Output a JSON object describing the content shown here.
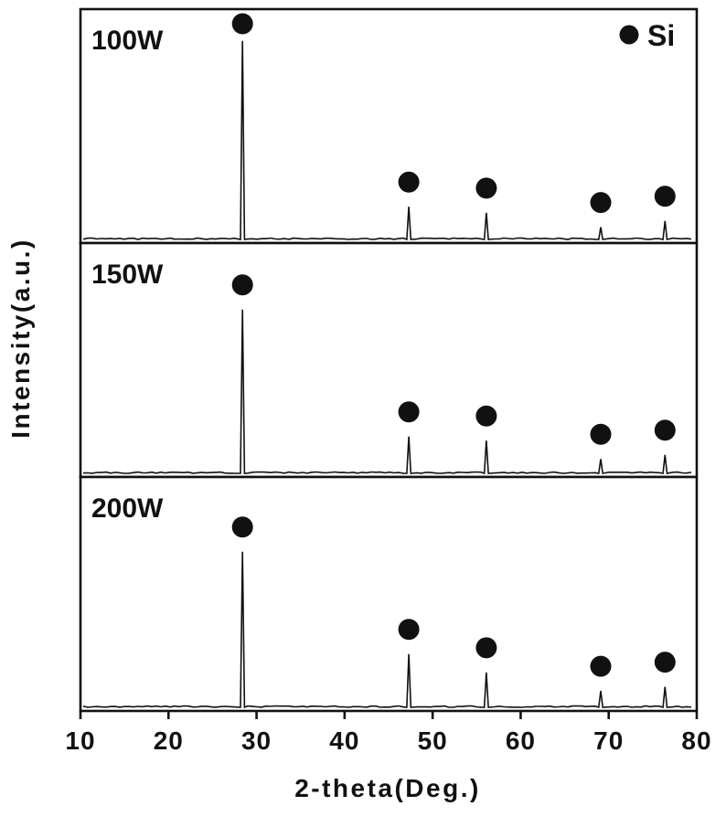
{
  "chart_data": {
    "type": "line",
    "title": "",
    "xlabel": "2-theta(Deg.)",
    "ylabel": "Intensity(a.u.)",
    "xlim": [
      10,
      80
    ],
    "xticks": [
      10,
      20,
      30,
      40,
      50,
      60,
      70,
      80
    ],
    "y_axis": "arbitrary units, no ticks shown",
    "grid": false,
    "legend": {
      "marker": "filled-circle",
      "label": "Si",
      "position": "top-right"
    },
    "peak_positions_2theta": [
      28.4,
      47.3,
      56.1,
      69.1,
      76.4
    ],
    "panels": [
      {
        "label": "100W",
        "peak_heights": [
          0.97,
          0.16,
          0.13,
          0.06,
          0.09
        ]
      },
      {
        "label": "150W",
        "peak_heights": [
          0.8,
          0.18,
          0.16,
          0.07,
          0.09
        ]
      },
      {
        "label": "200W",
        "peak_heights": [
          0.76,
          0.26,
          0.17,
          0.08,
          0.1
        ]
      }
    ],
    "series_color": "#111111",
    "marker_color": "#111111",
    "axis_color": "#111111",
    "background_color": "#ffffff"
  }
}
